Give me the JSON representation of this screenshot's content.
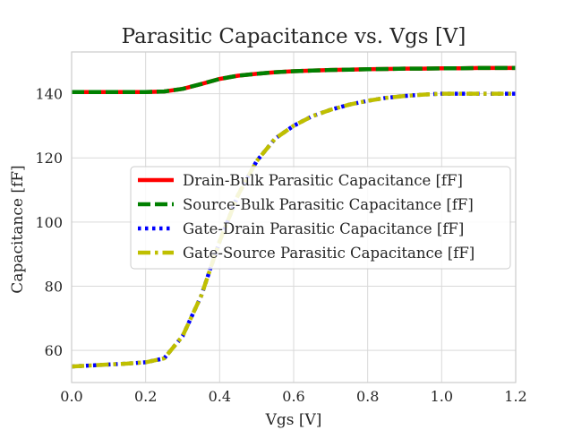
{
  "chart_data": {
    "type": "line",
    "title": "Parasitic Capacitance vs. Vgs [V]",
    "xlabel": "Vgs [V]",
    "ylabel": "Capacitance [fF]",
    "xlim": [
      0.0,
      1.2
    ],
    "ylim": [
      50,
      153
    ],
    "xticks": [
      0.0,
      0.2,
      0.4,
      0.6,
      0.8,
      1.0,
      1.2
    ],
    "xtick_labels": [
      "0.0",
      "0.2",
      "0.4",
      "0.6",
      "0.8",
      "1.0",
      "1.2"
    ],
    "yticks": [
      60,
      80,
      100,
      120,
      140
    ],
    "ytick_labels": [
      "60",
      "80",
      "100",
      "120",
      "140"
    ],
    "grid": true,
    "legend_position": "center-right",
    "x": [
      0.0,
      0.05,
      0.1,
      0.15,
      0.2,
      0.25,
      0.3,
      0.35,
      0.4,
      0.45,
      0.5,
      0.55,
      0.6,
      0.65,
      0.7,
      0.75,
      0.8,
      0.85,
      0.9,
      0.95,
      1.0,
      1.05,
      1.1,
      1.15,
      1.2
    ],
    "series": [
      {
        "name": "Drain-Bulk Parasitic Capacitance [fF]",
        "color": "#ff0000",
        "dash": "solid",
        "values": [
          140.5,
          140.5,
          140.5,
          140.5,
          140.5,
          140.7,
          141.5,
          143.0,
          144.6,
          145.6,
          146.2,
          146.7,
          147.0,
          147.2,
          147.4,
          147.5,
          147.6,
          147.7,
          147.8,
          147.8,
          147.9,
          147.9,
          148.0,
          148.0,
          148.0
        ]
      },
      {
        "name": "Source-Bulk Parasitic Capacitance [fF]",
        "color": "#008000",
        "dash": "dashed",
        "values": [
          140.5,
          140.5,
          140.5,
          140.5,
          140.5,
          140.7,
          141.5,
          143.0,
          144.6,
          145.6,
          146.2,
          146.7,
          147.0,
          147.2,
          147.4,
          147.5,
          147.6,
          147.7,
          147.8,
          147.8,
          147.9,
          147.9,
          148.0,
          148.0,
          148.0
        ]
      },
      {
        "name": "Gate-Drain Parasitic Capacitance [fF]",
        "color": "#0000ff",
        "dash": "dotted",
        "values": [
          55.0,
          55.3,
          55.6,
          55.9,
          56.3,
          57.5,
          64.5,
          77.0,
          94.0,
          108.5,
          119.0,
          126.0,
          130.0,
          133.0,
          135.0,
          136.6,
          137.8,
          138.7,
          139.3,
          139.7,
          140.0,
          140.0,
          140.0,
          140.0,
          140.0
        ]
      },
      {
        "name": "Gate-Source Parasitic Capacitance [fF]",
        "color": "#bfbf00",
        "dash": "dashdot",
        "values": [
          55.0,
          55.3,
          55.6,
          55.9,
          56.3,
          57.5,
          64.5,
          77.0,
          94.0,
          108.5,
          119.0,
          126.0,
          130.0,
          133.0,
          135.0,
          136.6,
          137.8,
          138.7,
          139.3,
          139.7,
          140.0,
          140.0,
          140.0,
          140.0,
          140.0
        ]
      }
    ]
  }
}
